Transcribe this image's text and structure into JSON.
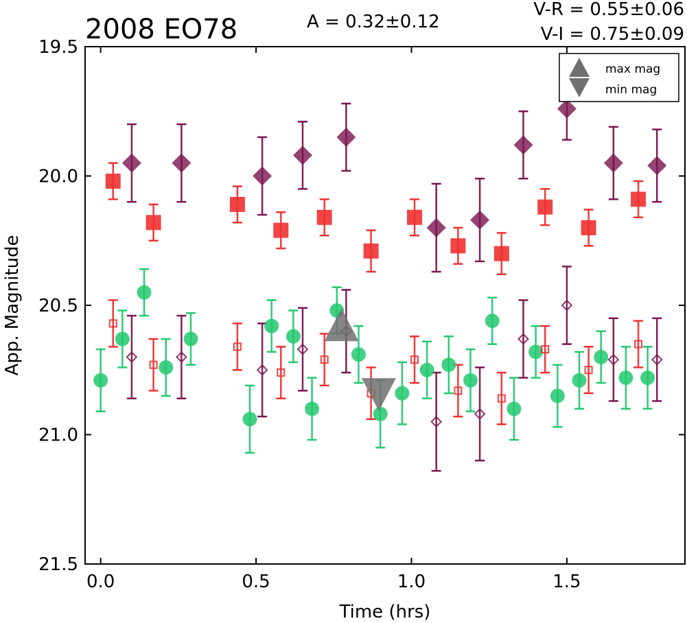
{
  "chart_data": {
    "type": "scatter",
    "title": "2008 EO78",
    "amplitude_label": "A  = 0.32±0.12",
    "color_vr_label": "V-R = 0.55±0.06",
    "color_vi_label": "V-I  = 0.75±0.09",
    "xlabel": "Time (hrs)",
    "ylabel": "App. Magnitude",
    "xlim": [
      -0.05,
      1.88
    ],
    "ylim": [
      21.5,
      19.5
    ],
    "y_inverted": true,
    "x_ticks": [
      "0.0",
      "0.5",
      "1.0",
      "1.5"
    ],
    "y_ticks": [
      "19.5",
      "20.0",
      "20.5",
      "21.0",
      "21.5"
    ],
    "grid": false,
    "legend_position": "top-right",
    "legend": [
      {
        "label": "max mag",
        "marker": "triangle-up",
        "color": "#707070"
      },
      {
        "label": "min mag",
        "marker": "triangle-down",
        "color": "#707070"
      }
    ],
    "series": [
      {
        "marker": "diamond-filled",
        "color": "#7b1450",
        "points": [
          {
            "x": 0.1,
            "y": 19.95,
            "err": 0.15
          },
          {
            "x": 0.26,
            "y": 19.95,
            "err": 0.15
          },
          {
            "x": 0.52,
            "y": 20.0,
            "err": 0.15
          },
          {
            "x": 0.65,
            "y": 19.92,
            "err": 0.13
          },
          {
            "x": 0.79,
            "y": 19.85,
            "err": 0.13
          },
          {
            "x": 1.08,
            "y": 20.2,
            "err": 0.17
          },
          {
            "x": 1.22,
            "y": 20.17,
            "err": 0.16
          },
          {
            "x": 1.36,
            "y": 19.88,
            "err": 0.13
          },
          {
            "x": 1.5,
            "y": 19.74,
            "err": 0.12
          },
          {
            "x": 1.65,
            "y": 19.95,
            "err": 0.14
          },
          {
            "x": 1.79,
            "y": 19.96,
            "err": 0.14
          }
        ]
      },
      {
        "marker": "square-filled",
        "color": "#f03030",
        "points": [
          {
            "x": 0.04,
            "y": 20.02,
            "err": 0.07
          },
          {
            "x": 0.17,
            "y": 20.18,
            "err": 0.07
          },
          {
            "x": 0.44,
            "y": 20.11,
            "err": 0.07
          },
          {
            "x": 0.58,
            "y": 20.21,
            "err": 0.07
          },
          {
            "x": 0.72,
            "y": 20.16,
            "err": 0.07
          },
          {
            "x": 0.87,
            "y": 20.29,
            "err": 0.08
          },
          {
            "x": 1.01,
            "y": 20.16,
            "err": 0.07
          },
          {
            "x": 1.15,
            "y": 20.27,
            "err": 0.07
          },
          {
            "x": 1.29,
            "y": 20.3,
            "err": 0.08
          },
          {
            "x": 1.43,
            "y": 20.12,
            "err": 0.07
          },
          {
            "x": 1.57,
            "y": 20.2,
            "err": 0.07
          },
          {
            "x": 1.73,
            "y": 20.09,
            "err": 0.07
          }
        ]
      },
      {
        "marker": "circle-filled",
        "color": "#22c86e",
        "points": [
          {
            "x": 0.0,
            "y": 20.79,
            "err": 0.12
          },
          {
            "x": 0.07,
            "y": 20.63,
            "err": 0.11
          },
          {
            "x": 0.14,
            "y": 20.45,
            "err": 0.09
          },
          {
            "x": 0.21,
            "y": 20.74,
            "err": 0.11
          },
          {
            "x": 0.29,
            "y": 20.63,
            "err": 0.1
          },
          {
            "x": 0.48,
            "y": 20.94,
            "err": 0.13
          },
          {
            "x": 0.55,
            "y": 20.58,
            "err": 0.1
          },
          {
            "x": 0.62,
            "y": 20.62,
            "err": 0.1
          },
          {
            "x": 0.68,
            "y": 20.9,
            "err": 0.12
          },
          {
            "x": 0.76,
            "y": 20.52,
            "err": 0.09
          },
          {
            "x": 0.83,
            "y": 20.69,
            "err": 0.11
          },
          {
            "x": 0.9,
            "y": 20.92,
            "err": 0.13
          },
          {
            "x": 0.97,
            "y": 20.84,
            "err": 0.12
          },
          {
            "x": 1.05,
            "y": 20.75,
            "err": 0.11
          },
          {
            "x": 1.12,
            "y": 20.73,
            "err": 0.11
          },
          {
            "x": 1.19,
            "y": 20.79,
            "err": 0.12
          },
          {
            "x": 1.26,
            "y": 20.56,
            "err": 0.09
          },
          {
            "x": 1.33,
            "y": 20.9,
            "err": 0.12
          },
          {
            "x": 1.4,
            "y": 20.68,
            "err": 0.1
          },
          {
            "x": 1.47,
            "y": 20.85,
            "err": 0.12
          },
          {
            "x": 1.54,
            "y": 20.79,
            "err": 0.11
          },
          {
            "x": 1.61,
            "y": 20.7,
            "err": 0.1
          },
          {
            "x": 1.69,
            "y": 20.78,
            "err": 0.12
          },
          {
            "x": 1.76,
            "y": 20.78,
            "err": 0.12
          }
        ]
      },
      {
        "marker": "diamond-open",
        "color": "#7b1450",
        "points": [
          {
            "x": 0.1,
            "y": 20.7,
            "err": 0.16
          },
          {
            "x": 0.26,
            "y": 20.7,
            "err": 0.16
          },
          {
            "x": 0.52,
            "y": 20.75,
            "err": 0.18
          },
          {
            "x": 0.65,
            "y": 20.67,
            "err": 0.16
          },
          {
            "x": 0.79,
            "y": 20.6,
            "err": 0.16
          },
          {
            "x": 1.08,
            "y": 20.95,
            "err": 0.19
          },
          {
            "x": 1.22,
            "y": 20.92,
            "err": 0.18
          },
          {
            "x": 1.36,
            "y": 20.63,
            "err": 0.15
          },
          {
            "x": 1.5,
            "y": 20.5,
            "err": 0.15
          },
          {
            "x": 1.65,
            "y": 20.71,
            "err": 0.16
          },
          {
            "x": 1.79,
            "y": 20.71,
            "err": 0.16
          }
        ]
      },
      {
        "marker": "square-open",
        "color": "#f03030",
        "points": [
          {
            "x": 0.04,
            "y": 20.57,
            "err": 0.09
          },
          {
            "x": 0.17,
            "y": 20.73,
            "err": 0.1
          },
          {
            "x": 0.44,
            "y": 20.66,
            "err": 0.09
          },
          {
            "x": 0.58,
            "y": 20.76,
            "err": 0.1
          },
          {
            "x": 0.72,
            "y": 20.71,
            "err": 0.1
          },
          {
            "x": 0.87,
            "y": 20.84,
            "err": 0.1
          },
          {
            "x": 1.01,
            "y": 20.71,
            "err": 0.09
          },
          {
            "x": 1.15,
            "y": 20.83,
            "err": 0.1
          },
          {
            "x": 1.29,
            "y": 20.86,
            "err": 0.1
          },
          {
            "x": 1.43,
            "y": 20.67,
            "err": 0.09
          },
          {
            "x": 1.57,
            "y": 20.75,
            "err": 0.09
          },
          {
            "x": 1.73,
            "y": 20.65,
            "err": 0.09
          }
        ]
      }
    ],
    "extrema": [
      {
        "kind": "max",
        "marker": "triangle-up",
        "x": 0.775,
        "y": 20.575,
        "color": "#707070"
      },
      {
        "kind": "min",
        "marker": "triangle-down",
        "x": 0.895,
        "y": 20.845,
        "color": "#707070"
      }
    ]
  }
}
